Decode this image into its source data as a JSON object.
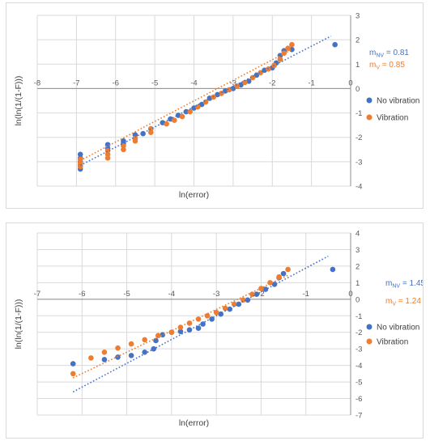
{
  "colors": {
    "no_vibration": "#4472c4",
    "vibration": "#ed7d31"
  },
  "chart_data": [
    {
      "type": "scatter",
      "xlabel": "ln(error)",
      "ylabel": "ln(ln(1/(1-F)))",
      "xlim": [
        -8,
        0
      ],
      "ylim": [
        -4,
        3
      ],
      "x_ticks": [
        "-8",
        "-7",
        "-6",
        "-5",
        "-4",
        "-3",
        "-2",
        "-1",
        "0"
      ],
      "y_ticks": [
        "3",
        "2",
        "1",
        "0",
        "-1",
        "-2",
        "-3",
        "-4"
      ],
      "grid": true,
      "legend_position": "right",
      "series": [
        {
          "name": "No vibration",
          "color": "#4472c4",
          "points": [
            [
              -6.9,
              -3.3
            ],
            [
              -6.9,
              -3.15
            ],
            [
              -6.9,
              -3.0
            ],
            [
              -6.9,
              -2.85
            ],
            [
              -6.9,
              -2.7
            ],
            [
              -6.2,
              -2.45
            ],
            [
              -6.2,
              -2.3
            ],
            [
              -5.8,
              -2.25
            ],
            [
              -5.8,
              -2.15
            ],
            [
              -5.5,
              -1.9
            ],
            [
              -5.3,
              -1.85
            ],
            [
              -5.1,
              -1.65
            ],
            [
              -4.8,
              -1.4
            ],
            [
              -4.6,
              -1.25
            ],
            [
              -4.4,
              -1.1
            ],
            [
              -4.2,
              -0.95
            ],
            [
              -4.0,
              -0.8
            ],
            [
              -3.8,
              -0.65
            ],
            [
              -3.6,
              -0.4
            ],
            [
              -3.4,
              -0.25
            ],
            [
              -3.2,
              -0.1
            ],
            [
              -3.0,
              0.0
            ],
            [
              -2.8,
              0.15
            ],
            [
              -2.6,
              0.3
            ],
            [
              -2.4,
              0.55
            ],
            [
              -2.2,
              0.75
            ],
            [
              -2.0,
              0.85
            ],
            [
              -1.9,
              1.05
            ],
            [
              -1.8,
              1.35
            ],
            [
              -1.7,
              1.55
            ],
            [
              -1.5,
              1.6
            ],
            [
              -0.4,
              1.8
            ]
          ]
        },
        {
          "name": "Vibration",
          "color": "#ed7d31",
          "points": [
            [
              -6.9,
              -3.2
            ],
            [
              -6.9,
              -3.05
            ],
            [
              -6.9,
              -2.9
            ],
            [
              -6.2,
              -2.85
            ],
            [
              -6.2,
              -2.7
            ],
            [
              -6.2,
              -2.55
            ],
            [
              -5.8,
              -2.5
            ],
            [
              -5.8,
              -2.35
            ],
            [
              -5.5,
              -2.15
            ],
            [
              -5.5,
              -2.05
            ],
            [
              -5.1,
              -1.8
            ],
            [
              -5.1,
              -1.65
            ],
            [
              -4.7,
              -1.45
            ],
            [
              -4.5,
              -1.3
            ],
            [
              -4.3,
              -1.15
            ],
            [
              -4.1,
              -0.95
            ],
            [
              -3.9,
              -0.75
            ],
            [
              -3.7,
              -0.55
            ],
            [
              -3.5,
              -0.35
            ],
            [
              -3.3,
              -0.2
            ],
            [
              -3.1,
              -0.05
            ],
            [
              -2.9,
              0.1
            ],
            [
              -2.7,
              0.25
            ],
            [
              -2.5,
              0.45
            ],
            [
              -2.3,
              0.65
            ],
            [
              -2.1,
              0.8
            ],
            [
              -1.95,
              0.95
            ],
            [
              -1.8,
              1.2
            ],
            [
              -1.7,
              1.45
            ],
            [
              -1.6,
              1.65
            ],
            [
              -1.5,
              1.8
            ]
          ]
        }
      ],
      "trendlines": [
        {
          "series": "No vibration",
          "from": [
            -6.9,
            -3.15
          ],
          "to": [
            -0.5,
            2.15
          ]
        },
        {
          "series": "Vibration",
          "from": [
            -6.9,
            -2.95
          ],
          "to": [
            -1.5,
            1.6
          ]
        }
      ],
      "annotations": [
        {
          "base": "m",
          "sub": "NV",
          "rest": " = 0.81",
          "color": "#4472c4"
        },
        {
          "base": "m",
          "sub": "V",
          "rest": " = 0.85",
          "color": "#ed7d31"
        }
      ]
    },
    {
      "type": "scatter",
      "xlabel": "ln(error)",
      "ylabel": "ln(ln(1/(1-F)))",
      "xlim": [
        -7,
        0
      ],
      "ylim": [
        -7,
        4
      ],
      "x_ticks": [
        "-7",
        "-6",
        "-5",
        "-4",
        "-3",
        "-2",
        "-1",
        "0"
      ],
      "y_ticks": [
        "4",
        "3",
        "2",
        "1",
        "0",
        "-1",
        "-2",
        "-3",
        "-4",
        "-5",
        "-6",
        "-7"
      ],
      "grid": true,
      "legend_position": "right",
      "series": [
        {
          "name": "No vibration",
          "color": "#4472c4",
          "points": [
            [
              -6.2,
              -3.9
            ],
            [
              -5.5,
              -3.65
            ],
            [
              -5.2,
              -3.5
            ],
            [
              -4.9,
              -3.4
            ],
            [
              -4.6,
              -3.2
            ],
            [
              -4.4,
              -3.0
            ],
            [
              -4.35,
              -2.5
            ],
            [
              -4.2,
              -2.15
            ],
            [
              -4.0,
              -2.0
            ],
            [
              -3.8,
              -1.95
            ],
            [
              -3.6,
              -1.85
            ],
            [
              -3.4,
              -1.75
            ],
            [
              -3.3,
              -1.5
            ],
            [
              -3.1,
              -1.2
            ],
            [
              -2.9,
              -0.9
            ],
            [
              -2.7,
              -0.6
            ],
            [
              -2.5,
              -0.3
            ],
            [
              -2.3,
              -0.05
            ],
            [
              -2.1,
              0.3
            ],
            [
              -1.9,
              0.6
            ],
            [
              -1.7,
              0.9
            ],
            [
              -1.6,
              1.3
            ],
            [
              -1.5,
              1.55
            ],
            [
              -0.4,
              1.8
            ]
          ]
        },
        {
          "name": "Vibration",
          "color": "#ed7d31",
          "points": [
            [
              -6.2,
              -4.5
            ],
            [
              -5.8,
              -3.55
            ],
            [
              -5.5,
              -3.2
            ],
            [
              -5.2,
              -2.95
            ],
            [
              -4.9,
              -2.7
            ],
            [
              -4.6,
              -2.45
            ],
            [
              -4.3,
              -2.2
            ],
            [
              -4.0,
              -2.0
            ],
            [
              -3.8,
              -1.7
            ],
            [
              -3.6,
              -1.45
            ],
            [
              -3.4,
              -1.2
            ],
            [
              -3.2,
              -1.0
            ],
            [
              -3.0,
              -0.8
            ],
            [
              -2.8,
              -0.55
            ],
            [
              -2.6,
              -0.3
            ],
            [
              -2.4,
              -0.05
            ],
            [
              -2.2,
              0.3
            ],
            [
              -2.0,
              0.65
            ],
            [
              -1.8,
              1.0
            ],
            [
              -1.6,
              1.35
            ],
            [
              -1.4,
              1.8
            ]
          ]
        }
      ],
      "trendlines": [
        {
          "series": "No vibration",
          "from": [
            -6.2,
            -5.6
          ],
          "to": [
            -0.5,
            2.6
          ]
        },
        {
          "series": "Vibration",
          "from": [
            -6.2,
            -4.75
          ],
          "to": [
            -1.4,
            1.45
          ]
        }
      ],
      "annotations": [
        {
          "base": "m",
          "sub": "NV",
          "rest": " = 1.45",
          "color": "#4472c4"
        },
        {
          "base": "m",
          "sub": "V",
          "rest": " = 1.24",
          "color": "#ed7d31"
        }
      ]
    }
  ]
}
